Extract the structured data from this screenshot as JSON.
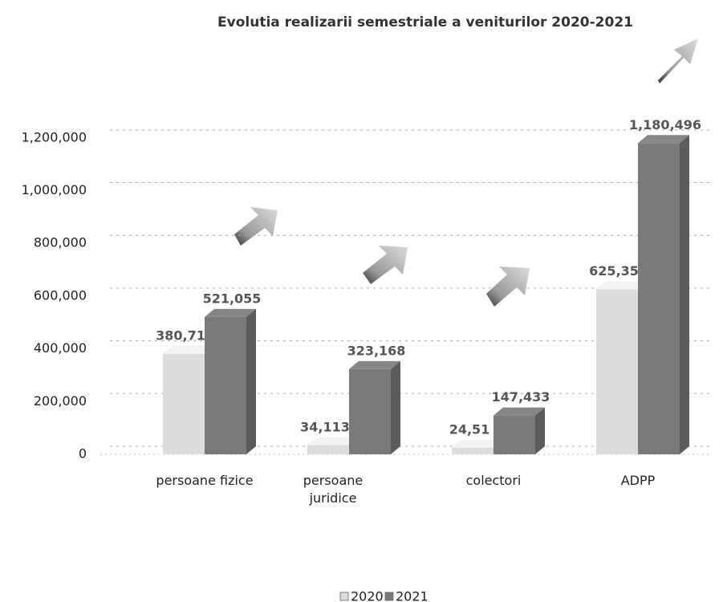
{
  "chart_data": {
    "type": "bar3d",
    "title": "Evolutia realizarii  semestriale a veniturilor 2020-2021",
    "categories": [
      "persoane fizice",
      "persoane juridice",
      "colectori",
      "ADPP"
    ],
    "series": [
      {
        "name": "2020",
        "color": "#dcdcdc",
        "values": [
          380710,
          34113,
          24513,
          625350
        ],
        "value_labels": [
          "380,71",
          "34,113",
          "24,51",
          "625,35"
        ]
      },
      {
        "name": "2021",
        "color": "#7a7a7a",
        "values": [
          521055,
          323168,
          147433,
          1180496
        ],
        "value_labels": [
          "521,055",
          "323,168",
          "147,433",
          "1,180,496"
        ]
      }
    ],
    "ylim": [
      0,
      1300000
    ],
    "yticks": [
      0,
      {
        "value": 200000,
        "label": "200,000"
      },
      {
        "value": 400000,
        "label": "400,000"
      },
      {
        "value": 600000,
        "label": "600,000"
      },
      {
        "value": 800000,
        "label": "800,000"
      },
      {
        "value": 1000000,
        "label": "1,000,000"
      },
      {
        "value": 1200000,
        "label": "1,200,000"
      }
    ],
    "grid": true,
    "legend": "bottom"
  }
}
